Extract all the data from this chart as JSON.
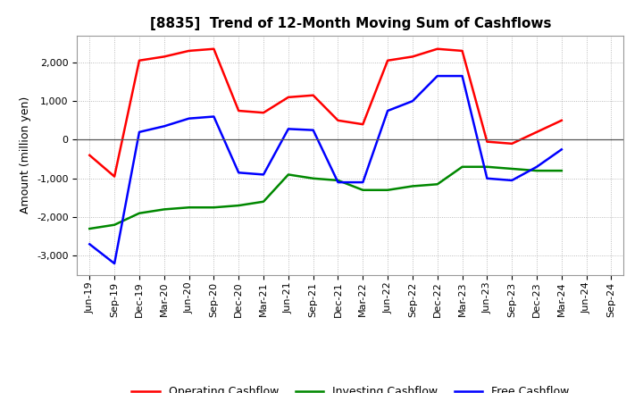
{
  "title": "[8835]  Trend of 12-Month Moving Sum of Cashflows",
  "ylabel": "Amount (million yen)",
  "xlabels": [
    "Jun-19",
    "Sep-19",
    "Dec-19",
    "Mar-20",
    "Jun-20",
    "Sep-20",
    "Dec-20",
    "Mar-21",
    "Jun-21",
    "Sep-21",
    "Dec-21",
    "Mar-22",
    "Jun-22",
    "Sep-22",
    "Dec-22",
    "Mar-23",
    "Jun-23",
    "Sep-23",
    "Dec-23",
    "Mar-24",
    "Jun-24",
    "Sep-24"
  ],
  "operating": [
    -400,
    -950,
    2050,
    2150,
    2300,
    2350,
    750,
    700,
    1100,
    1150,
    500,
    400,
    2050,
    2150,
    2350,
    2300,
    -50,
    -100,
    200,
    500,
    null,
    null
  ],
  "investing": [
    -2300,
    -2200,
    -1900,
    -1800,
    -1750,
    -1750,
    -1700,
    -1600,
    -900,
    -1000,
    -1050,
    -1300,
    -1300,
    -1200,
    -1150,
    -700,
    -700,
    -750,
    -800,
    -800,
    null,
    null
  ],
  "free": [
    -2700,
    -3200,
    200,
    350,
    550,
    600,
    -850,
    -900,
    280,
    250,
    -1100,
    -1100,
    750,
    1000,
    1650,
    1650,
    -1000,
    -1050,
    -700,
    -250,
    null,
    null
  ],
  "ylim": [
    -3500,
    2700
  ],
  "yticks": [
    -3000,
    -2000,
    -1000,
    0,
    1000,
    2000
  ],
  "operating_color": "#FF0000",
  "investing_color": "#008800",
  "free_color": "#0000FF",
  "bg_color": "#FFFFFF",
  "grid_color": "#AAAAAA",
  "zero_line_color": "#555555",
  "linewidth": 1.8,
  "title_fontsize": 11,
  "axis_fontsize": 9,
  "tick_fontsize": 8,
  "legend_fontsize": 9
}
